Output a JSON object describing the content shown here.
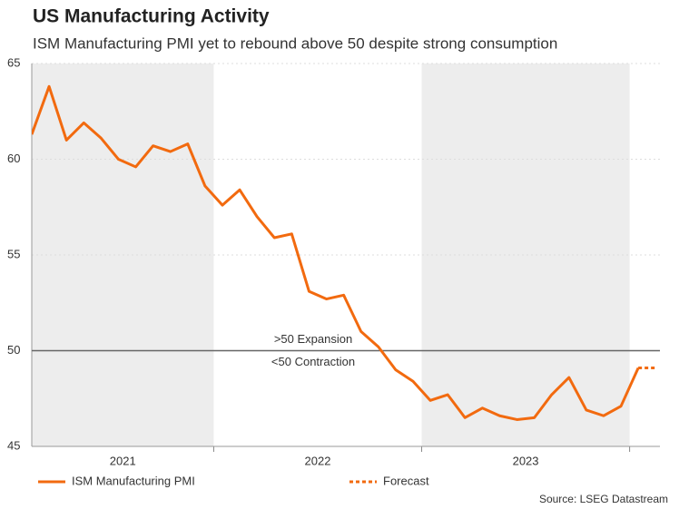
{
  "chart_data": {
    "type": "line",
    "title": "US Manufacturing Activity",
    "subtitle": "ISM Manufacturing PMI yet to rebound above 50 despite strong consumption",
    "source": "Source: LSEG Datastream",
    "categories": [
      null,
      null,
      null,
      null,
      null,
      null,
      null,
      null,
      null,
      null,
      null,
      null,
      null,
      null,
      null,
      null,
      null,
      null,
      null,
      null,
      null,
      null,
      null,
      null,
      null,
      null,
      null,
      null,
      null,
      null,
      null,
      null,
      null,
      null,
      null,
      null,
      null
    ],
    "year_labels": [
      "2021",
      "2022",
      "2023"
    ],
    "series": [
      {
        "name": "ISM Manufacturing PMI",
        "color": "#f26a0f",
        "dash": false,
        "values": [
          61.3,
          63.8,
          61.0,
          61.9,
          61.1,
          60.0,
          59.6,
          60.7,
          60.4,
          60.8,
          58.6,
          57.6,
          58.4,
          57.0,
          55.9,
          56.1,
          53.1,
          52.7,
          52.9,
          51.0,
          50.2,
          49.0,
          48.4,
          47.4,
          47.7,
          46.5,
          47.0,
          46.6,
          46.4,
          46.5,
          47.7,
          48.6,
          46.9,
          46.6,
          47.1,
          49.1,
          null
        ]
      },
      {
        "name": "Forecast",
        "color": "#f26a0f",
        "dash": true,
        "values": [
          null,
          null,
          null,
          null,
          null,
          null,
          null,
          null,
          null,
          null,
          null,
          null,
          null,
          null,
          null,
          null,
          null,
          null,
          null,
          null,
          null,
          null,
          null,
          null,
          null,
          null,
          null,
          null,
          null,
          null,
          null,
          null,
          null,
          null,
          null,
          49.1,
          49.1
        ]
      }
    ],
    "reference_line": {
      "value": 50,
      "label_above": ">50 Expansion",
      "label_below": "<50 Contraction"
    },
    "ylim": [
      45,
      65
    ],
    "yticks": [
      45,
      50,
      55,
      60,
      65
    ],
    "grid": true
  }
}
